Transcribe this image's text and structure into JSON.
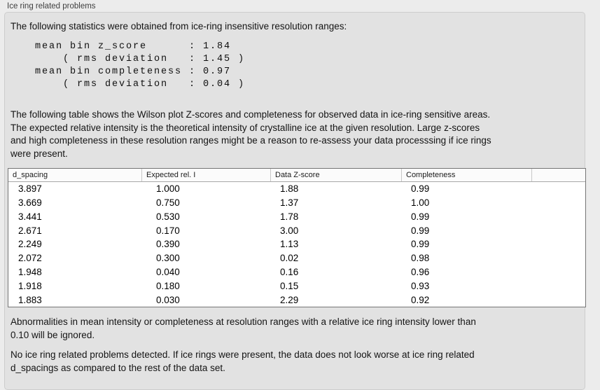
{
  "panel": {
    "title": "Ice ring related problems"
  },
  "intro": "The following statistics were obtained from ice-ring insensitive resolution ranges:",
  "stats_block": "mean bin z_score      : 1.84\n    ( rms deviation   : 1.45 )\nmean bin completeness : 0.97\n    ( rms deviation   : 0.04 )",
  "table_description": "The following table shows the Wilson plot Z-scores and completeness for observed data in ice-ring sensitive areas.\nThe expected relative intensity is the theoretical intensity of crystalline ice at the given resolution. Large z-scores\nand high completeness in these resolution ranges might be a reason to re-assess your data processsing if ice rings\nwere present.",
  "table": {
    "columns": [
      "d_spacing",
      "Expected rel. I",
      "Data Z-score",
      "Completeness"
    ],
    "rows": [
      [
        "3.897",
        "1.000",
        "1.88",
        "0.99"
      ],
      [
        "3.669",
        "0.750",
        "1.37",
        "1.00"
      ],
      [
        "3.441",
        "0.530",
        "1.78",
        "0.99"
      ],
      [
        "2.671",
        "0.170",
        "3.00",
        "0.99"
      ],
      [
        "2.249",
        "0.390",
        "1.13",
        "0.99"
      ],
      [
        "2.072",
        "0.300",
        "0.02",
        "0.98"
      ],
      [
        "1.948",
        "0.040",
        "0.16",
        "0.96"
      ],
      [
        "1.918",
        "0.180",
        "0.15",
        "0.93"
      ],
      [
        "1.883",
        "0.030",
        "2.29",
        "0.92"
      ]
    ]
  },
  "ignore_note": "Abnormalities in mean intensity or completeness at resolution ranges with a relative ice ring intensity lower than\n0.10 will be ignored.",
  "conclusion": "No ice ring related problems detected. If ice rings were present, the data does not look worse at ice ring related\nd_spacings as compared to the rest of the data set.",
  "colors": {
    "page_background": "#ececec",
    "panel_background": "#e2e2e2",
    "panel_border": "#cdcdcd",
    "table_border": "#757575",
    "table_background": "#ffffff",
    "text": "#141414"
  }
}
